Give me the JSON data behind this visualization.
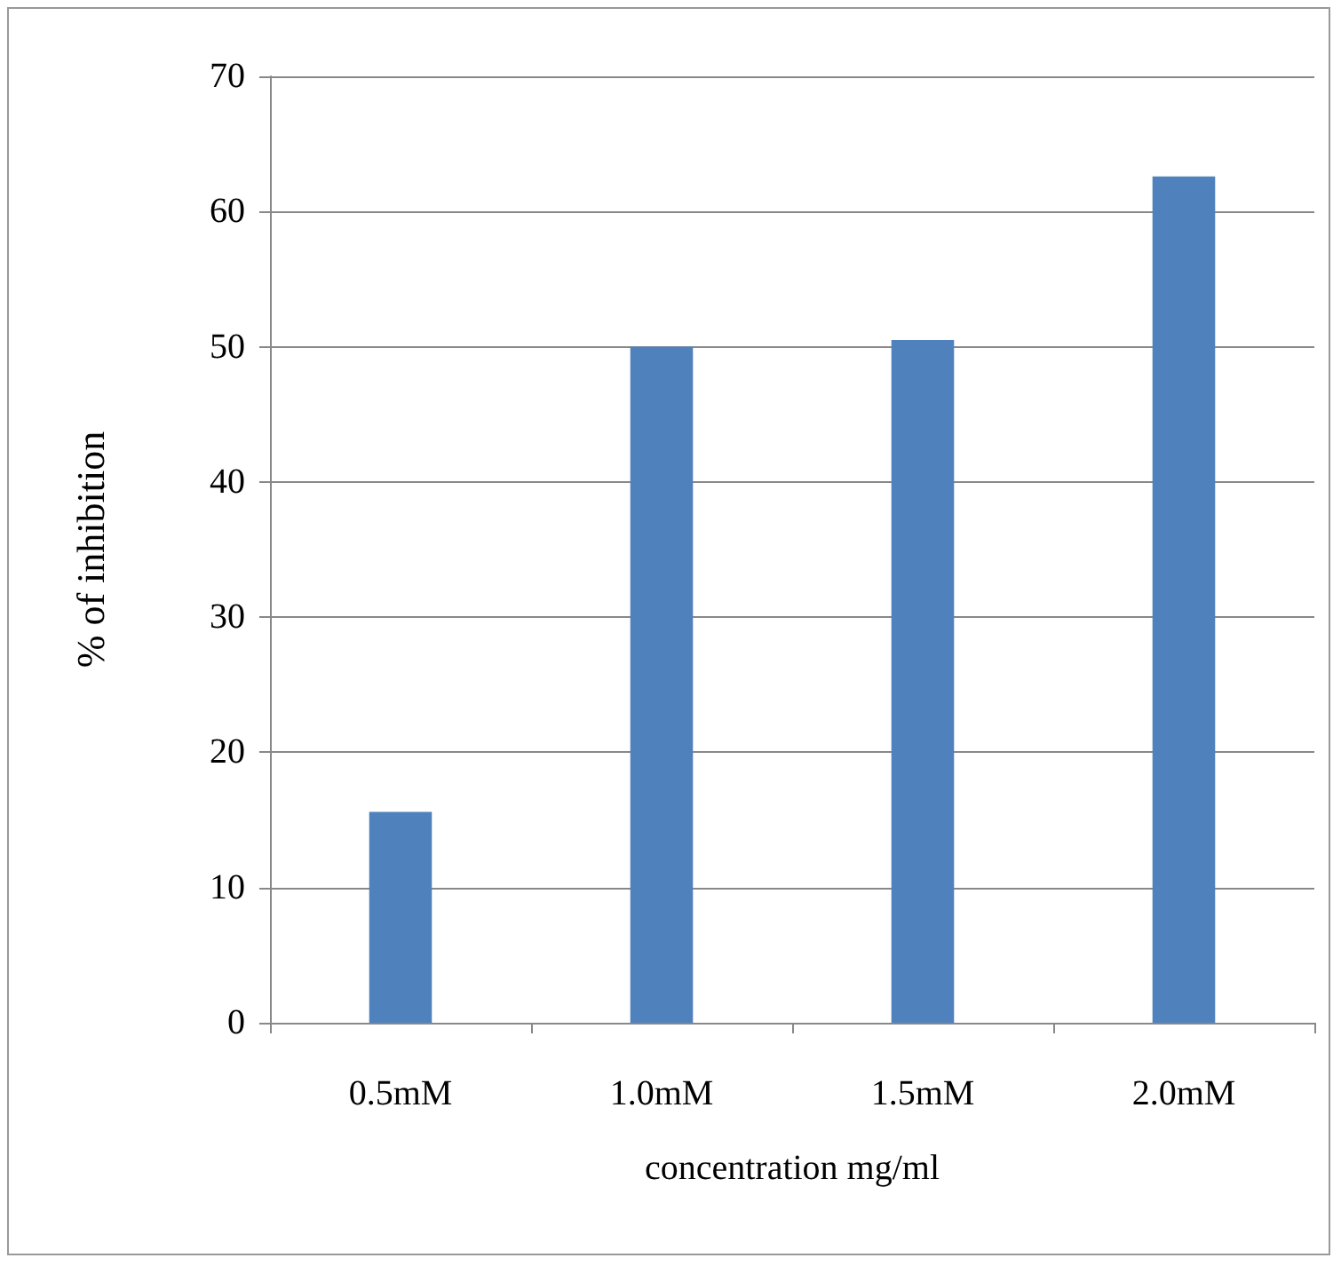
{
  "chart_data": {
    "type": "bar",
    "xlabel": "concentration mg/ml",
    "ylabel": "% of inhibition",
    "categories": [
      "0.5mM",
      "1.0mM",
      "1.5mM",
      "2.0mM"
    ],
    "values": [
      15.6,
      50.0,
      50.5,
      62.6
    ],
    "color": "#4f81bd",
    "ylim": [
      0,
      70
    ],
    "yticks": [
      0,
      10,
      20,
      30,
      40,
      50,
      60,
      70
    ],
    "grid": "y"
  }
}
